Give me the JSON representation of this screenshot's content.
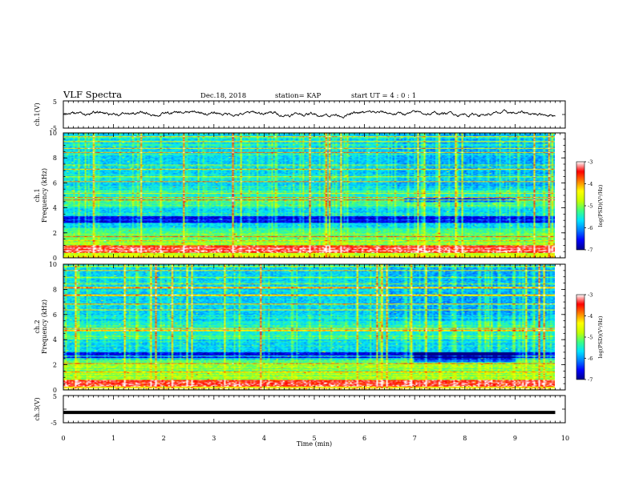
{
  "header": {
    "title": "VLF Spectra",
    "date": "Dec.18, 2018",
    "station": "station= KAP",
    "start": "start  UT =   4 : 0  : 1"
  },
  "colors": {
    "spectrogram_colormap": [
      "#00008b",
      "#0000ff",
      "#0080ff",
      "#00e5ff",
      "#40ff80",
      "#c8ff00",
      "#ffff00",
      "#ff8000",
      "#ff0000",
      "#ffffff"
    ],
    "waveform": "#000000",
    "axes": "#000000"
  },
  "chart_data": [
    {
      "type": "line",
      "name": "ch1-waveform",
      "ylabel": "ch.1(V)",
      "yticks": [
        "5",
        "-5"
      ],
      "ylim": [
        -5,
        5
      ],
      "xlim": [
        0,
        10
      ],
      "x_end": 9.8,
      "value_band": [
        -1.5,
        1.8
      ],
      "mean": 0.3
    },
    {
      "type": "heatmap",
      "name": "ch1-spectrogram",
      "ylabel_lines": [
        "ch.1",
        "Frequency (kHz)"
      ],
      "yticks": [
        "0",
        "2",
        "4",
        "6",
        "8",
        "10"
      ],
      "ylim": [
        0,
        10
      ],
      "xlim": [
        0,
        10
      ],
      "x_end": 9.8,
      "colorbar": {
        "label": "log(PSD)(V²/Hz)",
        "range": [
          -7,
          -3
        ],
        "ticks": [
          "-3",
          "-4",
          "-5",
          "-6",
          "-7"
        ]
      },
      "features": {
        "dark_band_khz": [
          2.8,
          3.3
        ],
        "quiet_region": {
          "t": [
            6.8,
            9.0
          ],
          "khz": [
            4.5,
            4.8
          ]
        },
        "intense_band_khz": [
          0.4,
          1.0
        ]
      }
    },
    {
      "type": "heatmap",
      "name": "ch2-spectrogram",
      "ylabel_lines": [
        "ch.2",
        "Frequency (kHz)"
      ],
      "yticks": [
        "0",
        "2",
        "4",
        "6",
        "8",
        "10"
      ],
      "ylim": [
        0,
        10
      ],
      "xlim": [
        0,
        10
      ],
      "x_end": 9.8,
      "colorbar": {
        "label": "log(PSD)(V²/Hz)",
        "range": [
          -7,
          -3
        ],
        "ticks": [
          "-3",
          "-4",
          "-5",
          "-6",
          "-7"
        ]
      },
      "features": {
        "dark_band_khz": [
          2.5,
          3.0
        ],
        "quiet_region": {
          "t": [
            7.0,
            9.0
          ],
          "khz": [
            2.2,
            3.0
          ]
        },
        "intense_band_khz": [
          0.3,
          0.8
        ]
      }
    },
    {
      "type": "line",
      "name": "ch3-waveform",
      "ylabel": "ch.3(V)",
      "yticks": [
        "5",
        "-5"
      ],
      "ylim": [
        -5,
        5
      ],
      "xlim": [
        0,
        10
      ],
      "x_end": 9.8,
      "constant_value": -1.2
    }
  ],
  "x_axis": {
    "label": "Time (min)",
    "ticks": [
      "0",
      "1",
      "2",
      "3",
      "4",
      "5",
      "6",
      "7",
      "8",
      "9",
      "10"
    ]
  }
}
